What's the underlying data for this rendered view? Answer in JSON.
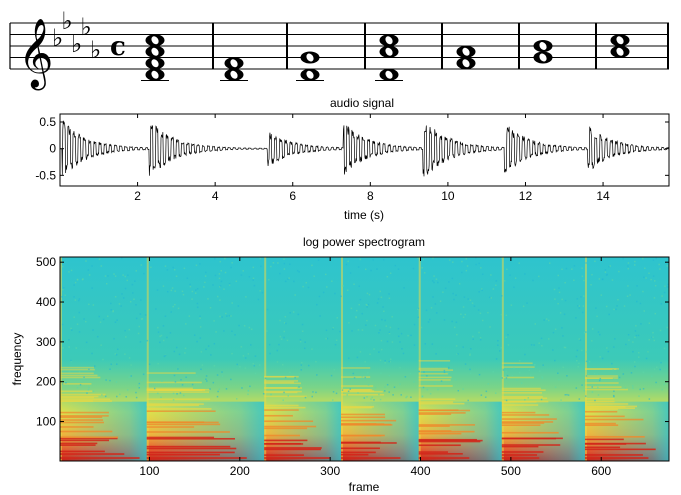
{
  "colors": {
    "background": "#ffffff",
    "ink": "#000000",
    "spec_low": "#2fc6c9",
    "spec_mid": "#e8e332",
    "spec_high": "#cf2118"
  },
  "score": {
    "clef": "treble",
    "key_signature": "five flats",
    "time_signature": "common time",
    "time_symbol": "c",
    "chord_count": 7
  },
  "chart_data": [
    {
      "type": "line",
      "title": "audio signal",
      "xlabel": "time (s)",
      "ylabel": "",
      "xlim": [
        0,
        15.7
      ],
      "ylim": [
        -0.7,
        0.65
      ],
      "xticks": [
        2,
        4,
        6,
        8,
        10,
        12,
        14
      ],
      "yticks": [
        0.5,
        0,
        -0.5
      ],
      "ytick_labels": [
        "0.5",
        "0",
        "-0.5"
      ],
      "grid": false,
      "onsets_s": [
        0.05,
        2.3,
        5.35,
        7.3,
        9.35,
        11.45,
        13.6
      ],
      "peak_amplitude": [
        0.58,
        0.55,
        0.35,
        0.5,
        0.6,
        0.5,
        0.45
      ]
    },
    {
      "type": "heatmap",
      "title": "log power spectrogram",
      "xlabel": "frame",
      "ylabel": "frequency",
      "xlim": [
        1,
        675
      ],
      "ylim": [
        1,
        513
      ],
      "xticks": [
        100,
        200,
        300,
        400,
        500,
        600
      ],
      "yticks": [
        100,
        200,
        300,
        400,
        500
      ],
      "colormap": "spectral (low = cyan, high = red)",
      "onset_frames": [
        1,
        97,
        227,
        312,
        398,
        490,
        582
      ]
    }
  ]
}
